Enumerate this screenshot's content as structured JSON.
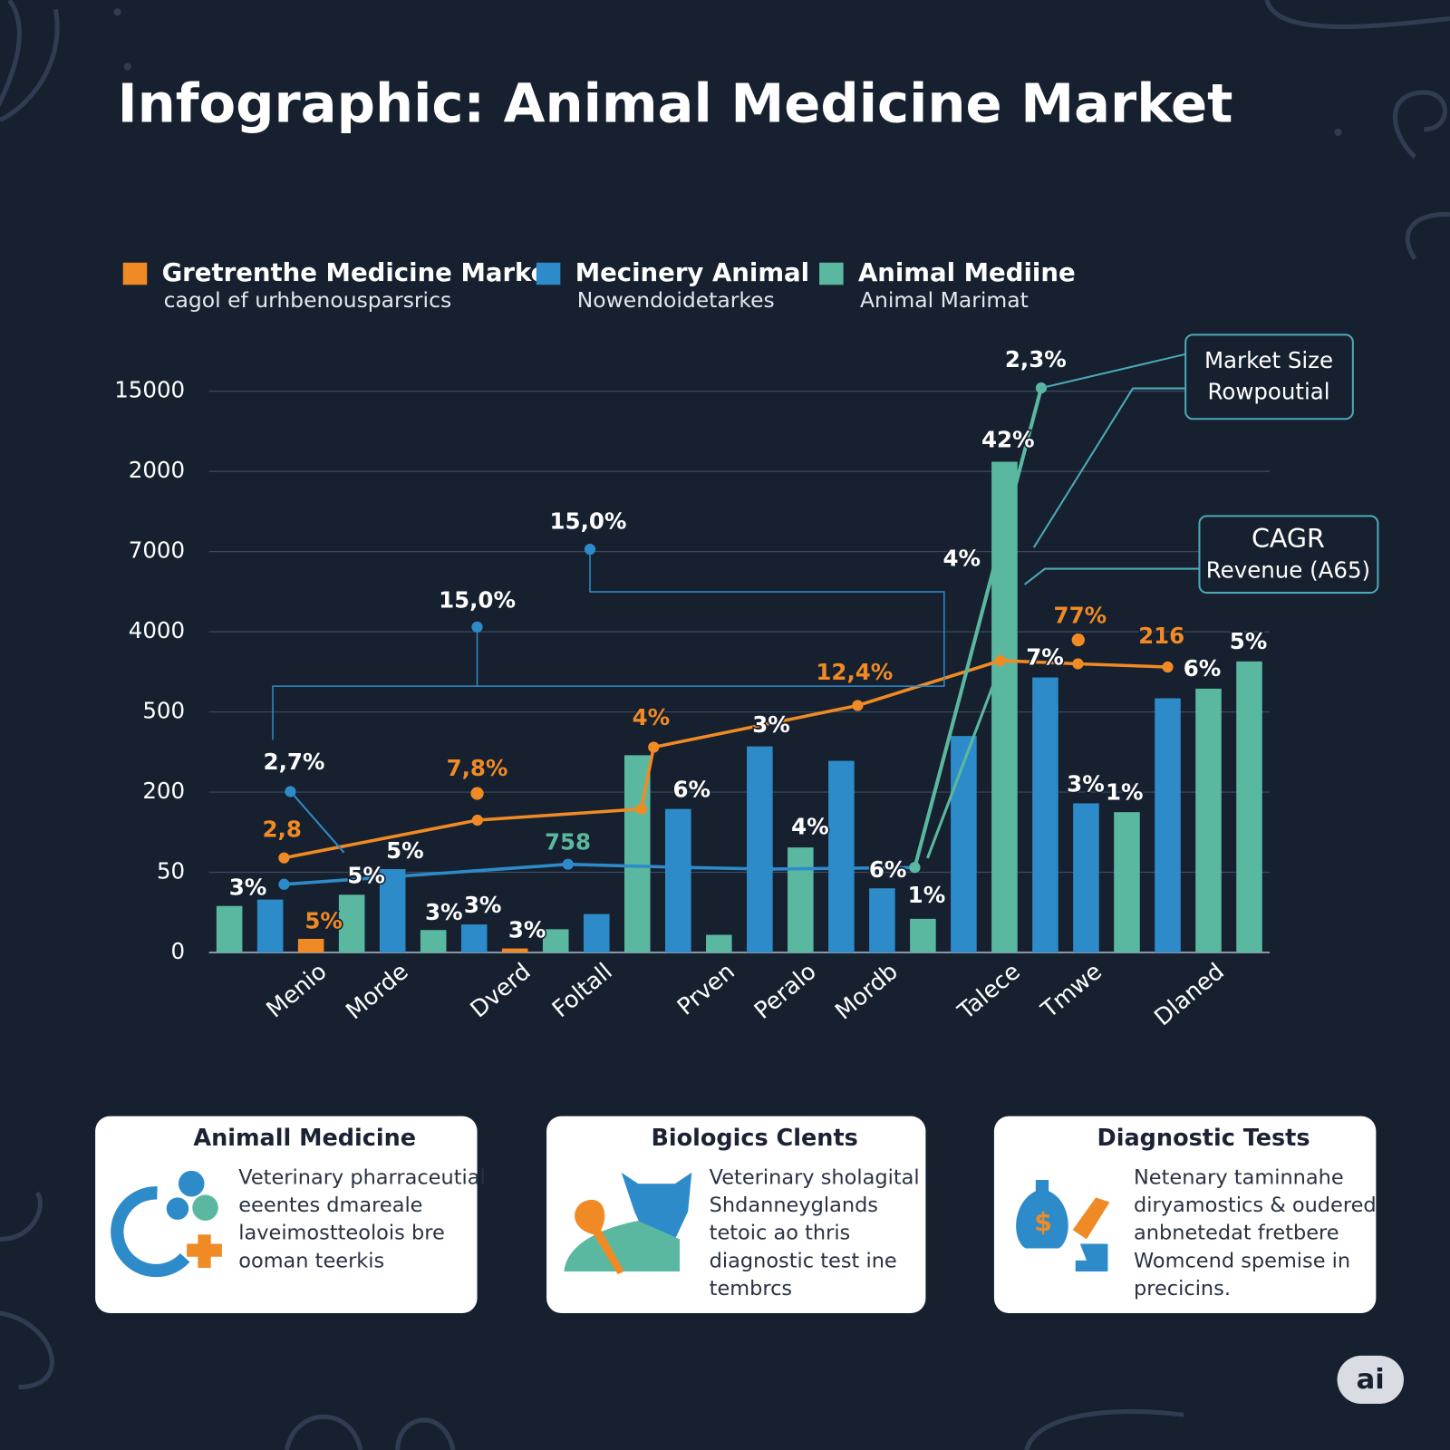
{
  "title": "Infographic: Animal Medicine Market",
  "chart_data": {
    "type": "bar",
    "categories": [
      null,
      null,
      "Menio",
      null,
      "Morde",
      null,
      null,
      "Dverd",
      null,
      "Foltall",
      null,
      null,
      "Prven",
      null,
      "Peralo",
      null,
      "Mordb",
      null,
      null,
      "Talece",
      null,
      "Tmwe",
      null,
      null,
      "Dlaned",
      null
    ],
    "series": [
      {
        "name": "Gretrenthe Medicine Market",
        "description": "cagol ef urhbenousparsrics",
        "color": "#f08a24",
        "values": [
          null,
          null,
          0.17,
          null,
          null,
          null,
          null,
          0.05,
          null,
          null,
          null,
          null,
          null,
          null,
          null,
          null,
          null,
          null,
          null,
          null,
          null,
          null,
          null,
          null,
          null,
          null
        ]
      },
      {
        "name": "Mecinery Animal",
        "description": "Nowendoidetarkes",
        "color": "#2e8bc9",
        "values": [
          null,
          0.66,
          null,
          null,
          1.04,
          null,
          0.35,
          null,
          null,
          0.48,
          null,
          1.79,
          null,
          2.57,
          null,
          2.39,
          0.8,
          null,
          2.7,
          null,
          3.43,
          1.86,
          null,
          3.17,
          null,
          null
        ]
      },
      {
        "name": "Animal Mediine",
        "description": "Animal Marimat",
        "color": "#5bb8a0",
        "values": [
          0.58,
          null,
          null,
          0.72,
          null,
          0.28,
          null,
          null,
          0.29,
          null,
          2.46,
          null,
          0.22,
          null,
          1.31,
          null,
          null,
          0.42,
          null,
          6.12,
          null,
          null,
          1.75,
          null,
          3.29,
          3.63
        ]
      }
    ],
    "lines": [
      {
        "color": "#f08a24",
        "x": [
          1.34,
          6.08,
          10.1,
          10.4,
          15.4,
          18.9,
          20.8,
          23.0
        ],
        "values": [
          1.18,
          1.65,
          1.79,
          2.56,
          3.08,
          3.64,
          3.6,
          3.56
        ]
      },
      {
        "color": "#2e8bc9",
        "x": [
          1.34,
          8.3,
          11.2,
          13.2,
          16.8
        ],
        "values": [
          0.85,
          1.1,
          1.06,
          1.04,
          1.06
        ]
      },
      {
        "color": "#5bb8a0",
        "x": [
          16.8,
          19.9
        ],
        "values": [
          1.06,
          7.04
        ]
      }
    ],
    "ylim": [
      0,
      7
    ],
    "yticks": [
      {
        "value": 0,
        "label": "0"
      },
      {
        "value": 1,
        "label": "50"
      },
      {
        "value": 2,
        "label": "200"
      },
      {
        "value": 3,
        "label": "500"
      },
      {
        "value": 4,
        "label": "4000"
      },
      {
        "value": 5,
        "label": "7000"
      },
      {
        "value": 6,
        "label": "2000"
      },
      {
        "value": 7,
        "label": "15000"
      }
    ],
    "grid": true,
    "annotations": [
      "2,3%",
      "42%",
      "15,0%",
      "15,0%",
      "4%",
      "77%",
      "216",
      "5%",
      "7%",
      "6%",
      "12,4%",
      "4%",
      "3%",
      "2,7%",
      "7,8%",
      "6%",
      "3%",
      "1%",
      "2,8",
      "4%",
      "5%",
      "758",
      "3%",
      "5%",
      "6%",
      "1%",
      "5%",
      "3%",
      "3%",
      "3%"
    ],
    "callouts": [
      {
        "lines": [
          "Market Size",
          "Rowpoutial"
        ]
      },
      {
        "lines": [
          "CAGR",
          "Revenue (A65)"
        ]
      }
    ]
  },
  "cards": [
    {
      "title": "Animall Medicine",
      "lines": [
        "Veterinary pharraceutial",
        "eeentes dmareale",
        "laveimostteolois bre",
        "ooman teerkis"
      ]
    },
    {
      "title": "Biologics Clents",
      "lines": [
        "Veterinary sholagital",
        "Shdanneyglands",
        "tetoic ao thris",
        "diagnostic test ine",
        "tembrcs"
      ]
    },
    {
      "title": "Diagnostic Tests",
      "lines": [
        "Netenary taminnahe",
        "diryamostics & oudered",
        "anbnetedat fretbere",
        "Womcend spemise in",
        "precicins."
      ]
    }
  ],
  "badge": "ai"
}
